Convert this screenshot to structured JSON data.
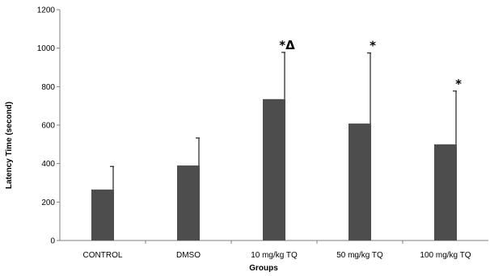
{
  "chart_data": {
    "type": "bar",
    "title": "",
    "xlabel": "Groups",
    "ylabel": "Latency Time  (second)",
    "categories": [
      "CONTROL",
      "DMSO",
      "10 mg/kg TQ",
      "50 mg/kg TQ",
      "100 mg/kg TQ"
    ],
    "values": [
      265,
      390,
      735,
      608,
      500
    ],
    "error_upper": [
      385,
      533,
      978,
      975,
      777
    ],
    "annotations": [
      "",
      "",
      "*Δ",
      "*",
      "*"
    ],
    "ylim": [
      0,
      1200
    ],
    "yticks": [
      "0",
      "200",
      "400",
      "600",
      "800",
      "1000",
      "1200"
    ],
    "grid": false,
    "bar_color": "#4d4d4d"
  }
}
